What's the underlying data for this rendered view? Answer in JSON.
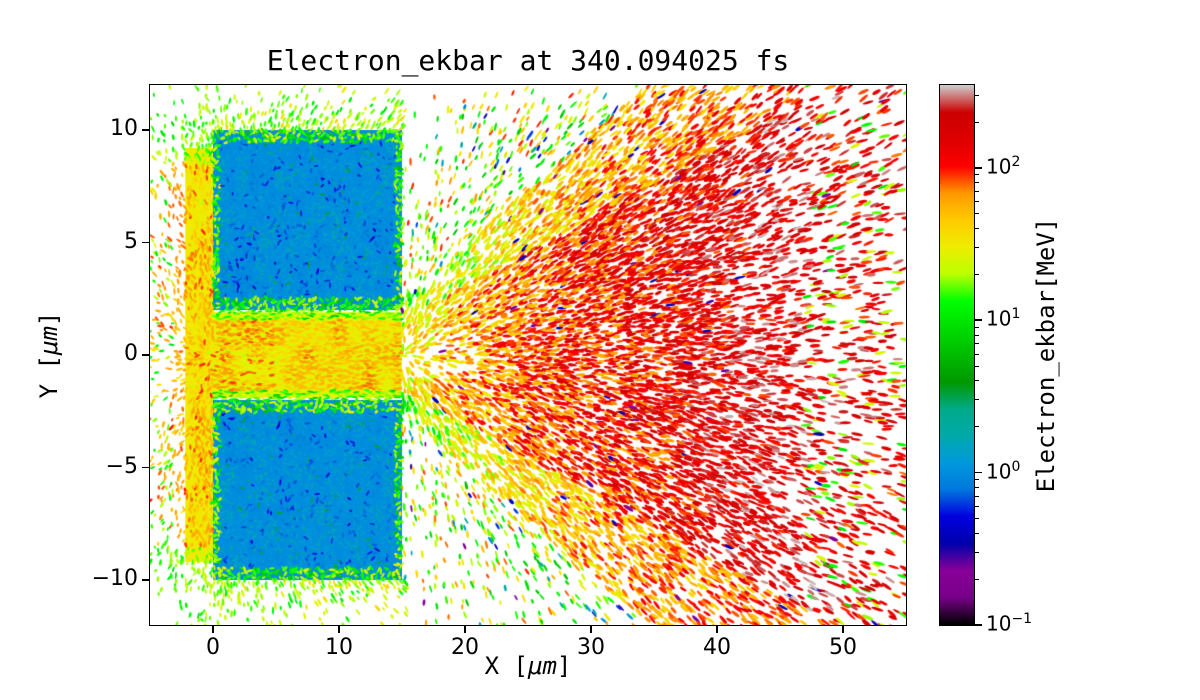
{
  "figure": {
    "title": "Electron_ekbar at 340.094025 fs"
  },
  "axes": {
    "x_label": {
      "prefix": "X [",
      "unit": "μm",
      "suffix": "]"
    },
    "y_label": {
      "prefix": "Y [",
      "unit": "μm",
      "suffix": "]"
    },
    "x_ticks": [
      {
        "label": "0",
        "value": 0
      },
      {
        "label": "10",
        "value": 10
      },
      {
        "label": "20",
        "value": 20
      },
      {
        "label": "30",
        "value": 30
      },
      {
        "label": "40",
        "value": 40
      },
      {
        "label": "50",
        "value": 50
      }
    ],
    "y_ticks": [
      {
        "label": "10",
        "value": 10
      },
      {
        "label": "5",
        "value": 5
      },
      {
        "label": "0",
        "value": 0
      },
      {
        "label": "−5",
        "value": -5
      },
      {
        "label": "−10",
        "value": -10
      }
    ]
  },
  "colorbar": {
    "label": "Electron_ekbar[MeV]",
    "ticks": [
      {
        "mantissa": "10",
        "exponent": "2",
        "value": 100
      },
      {
        "mantissa": "10",
        "exponent": "1",
        "value": 10
      },
      {
        "mantissa": "10",
        "exponent": "0",
        "value": 1
      },
      {
        "mantissa": "10",
        "exponent": "−1",
        "value": 0.1
      }
    ]
  },
  "chart_data": {
    "type": "heatmap",
    "title": "Electron_ekbar at 340.094025 fs",
    "xlabel": "X [μm]",
    "ylabel": "Y [μm]",
    "colorbar_label": "Electron_ekbar[MeV]",
    "time_fs": 340.094025,
    "xlim": [
      -5,
      55
    ],
    "ylim": [
      -12,
      12
    ],
    "grid": false,
    "color_scale": {
      "type": "log",
      "unit": "MeV",
      "vmin": 0.1,
      "vmax": 350,
      "colormap": "nipy_spectral",
      "stops": [
        "#000000",
        "#770088",
        "#880099",
        "#0000aa",
        "#0000dd",
        "#0077dd",
        "#0099dd",
        "#00aaaa",
        "#00aa88",
        "#009900",
        "#00bb00",
        "#00dd00",
        "#00ff00",
        "#bbff00",
        "#eeee00",
        "#ffcc00",
        "#ff9900",
        "#ff0000",
        "#dd0000",
        "#cc0000",
        "#cccccc"
      ]
    },
    "structures": {
      "description": "Mean electron kinetic energy map from a laser-target simulation: two cold (~1 MeV, blue) target slabs separated by a hot (~30-90 MeV, yellow-orange) central channel; a cone of energetic (>100 MeV, red) electrons expands toward +x from the channel exit; green (~10 MeV) plasma halo and pre-plasma fringes surround the target.",
      "target_slabs": [
        {
          "x0": 0,
          "x1": 15,
          "y0": 2,
          "y1": 10,
          "mean_energy_mev": 1.0
        },
        {
          "x0": 0,
          "x1": 15,
          "y0": -10,
          "y1": -2,
          "mean_energy_mev": 1.0
        }
      ],
      "slab_edge_energy_mev": 12,
      "channel": {
        "x0": 0,
        "x1": 15,
        "half_width": 2,
        "mean_energy_mev": 45
      },
      "preplasma": {
        "x0": -5,
        "x1": 0,
        "mean_energy_mev": 40,
        "fringe_energy_mev": 10
      },
      "exit_cone": {
        "apex_x": 15,
        "base_half_width": 2.2,
        "half_angle_slope": 0.42,
        "energy_growth_per_um": 4.5,
        "max_energy_mev": 160
      },
      "halo_energy_mev": 12
    }
  }
}
